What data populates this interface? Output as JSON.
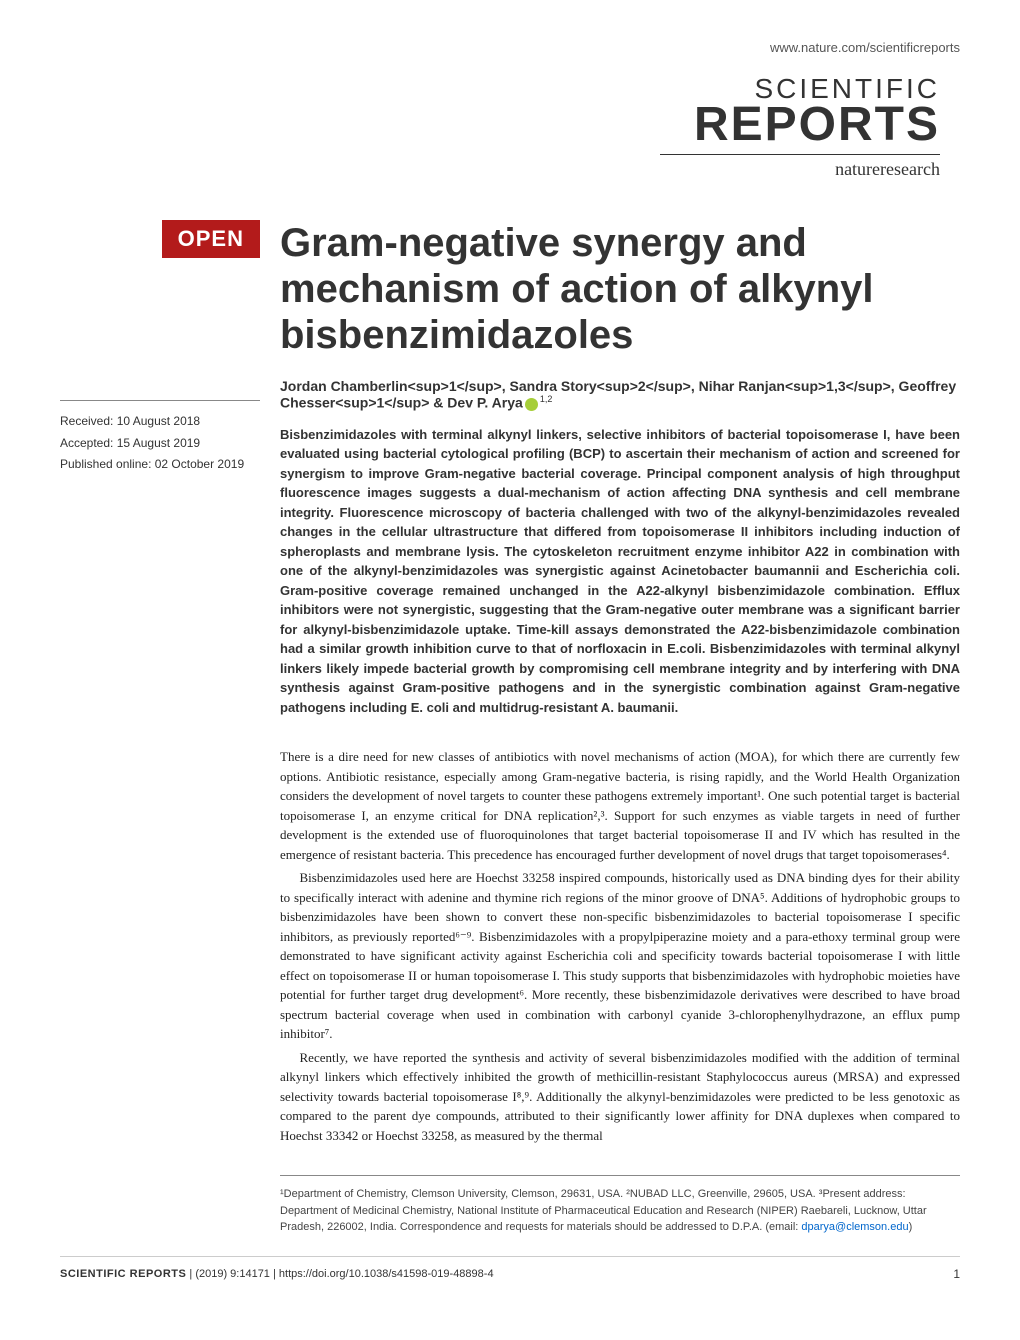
{
  "header": {
    "url": "www.nature.com/scientificreports",
    "logo_line1": "SCIENTIFIC",
    "logo_line2": "REPORTS",
    "logo_sub": "natureresearch"
  },
  "badge": {
    "open": "OPEN"
  },
  "dates": {
    "received": "Received: 10 August 2018",
    "accepted": "Accepted: 15 August 2019",
    "published": "Published online: 02 October 2019"
  },
  "article": {
    "title": "Gram-negative synergy and mechanism of action of alkynyl bisbenzimidazoles",
    "authors_html": "Jordan Chamberlin<sup>1</sup>, Sandra Story<sup>2</sup>, Nihar Ranjan<sup>1,3</sup>, Geoffrey Chesser<sup>1</sup> & Dev P. Arya",
    "author_final_sup": "1,2",
    "abstract": "Bisbenzimidazoles with terminal alkynyl linkers, selective inhibitors of bacterial topoisomerase I, have been evaluated using bacterial cytological profiling (BCP) to ascertain their mechanism of action and screened for synergism to improve Gram-negative bacterial coverage. Principal component analysis of high throughput fluorescence images suggests a dual-mechanism of action affecting DNA synthesis and cell membrane integrity. Fluorescence microscopy of bacteria challenged with two of the alkynyl-benzimidazoles revealed changes in the cellular ultrastructure that differed from topoisomerase II inhibitors including induction of spheroplasts and membrane lysis. The cytoskeleton recruitment enzyme inhibitor A22 in combination with one of the alkynyl-benzimidazoles was synergistic against Acinetobacter baumannii and Escherichia coli. Gram-positive coverage remained unchanged in the A22-alkynyl bisbenzimidazole combination. Efflux inhibitors were not synergistic, suggesting that the Gram-negative outer membrane was a significant barrier for alkynyl-bisbenzimidazole uptake. Time-kill assays demonstrated the A22-bisbenzimidazole combination had a similar growth inhibition curve to that of norfloxacin in E.coli. Bisbenzimidazoles with terminal alkynyl linkers likely impede bacterial growth by compromising cell membrane integrity and by interfering with DNA synthesis against Gram-positive pathogens and in the synergistic combination against Gram-negative pathogens including E. coli and multidrug-resistant A. baumanii."
  },
  "body": {
    "p1": "There is a dire need for new classes of antibiotics with novel mechanisms of action (MOA), for which there are currently few options. Antibiotic resistance, especially among Gram-negative bacteria, is rising rapidly, and the World Health Organization considers the development of novel targets to counter these pathogens extremely important¹. One such potential target is bacterial topoisomerase I, an enzyme critical for DNA replication²,³. Support for such enzymes as viable targets in need of further development is the extended use of fluoroquinolones that target bacterial topoisomerase II and IV which has resulted in the emergence of resistant bacteria. This precedence has encouraged further development of novel drugs that target topoisomerases⁴.",
    "p2": "Bisbenzimidazoles used here are Hoechst 33258 inspired compounds, historically used as DNA binding dyes for their ability to specifically interact with adenine and thymine rich regions of the minor groove of DNA⁵. Additions of hydrophobic groups to bisbenzimidazoles have been shown to convert these non-specific bisbenzimidazoles to bacterial topoisomerase I specific inhibitors, as previously reported⁶⁻⁹. Bisbenzimidazoles with a propylpiperazine moiety and a para-ethoxy terminal group were demonstrated to have significant activity against Escherichia coli and specificity towards bacterial topoisomerase I with little effect on topoisomerase II or human topoisomerase I. This study supports that bisbenzimidazoles with hydrophobic moieties have potential for further target drug development⁶. More recently, these bisbenzimidazole derivatives were described to have broad spectrum bacterial coverage when used in combination with carbonyl cyanide 3-chlorophenylhydrazone, an efflux pump inhibitor⁷.",
    "p3": "Recently, we have reported the synthesis and activity of several bisbenzimidazoles modified with the addition of terminal alkynyl linkers which effectively inhibited the growth of methicillin-resistant Staphylococcus aureus (MRSA) and expressed selectivity towards bacterial topoisomerase I⁸,⁹. Additionally the alkynyl-benzimidazoles were predicted to be less genotoxic as compared to the parent dye compounds, attributed to their significantly lower affinity for DNA duplexes when compared to Hoechst 33342 or Hoechst 33258, as measured by the thermal"
  },
  "affiliations": {
    "text": "¹Department of Chemistry, Clemson University, Clemson, 29631, USA. ²NUBAD LLC, Greenville, 29605, USA. ³Present address: Department of Medicinal Chemistry, National Institute of Pharmaceutical Education and Research (NIPER) Raebareli, Lucknow, Uttar Pradesh, 226002, India. Correspondence and requests for materials should be addressed to D.P.A. (email: ",
    "email": "dparya@clemson.edu",
    "close": ")"
  },
  "footer": {
    "journal": "SCIENTIFIC REPORTS",
    "citation": " |         (2019) 9:14171  | https://doi.org/10.1038/s41598-019-48898-4",
    "page": "1"
  },
  "colors": {
    "open_badge_bg": "#b31b1b",
    "link": "#0066cc",
    "orcid": "#a6ce39"
  }
}
